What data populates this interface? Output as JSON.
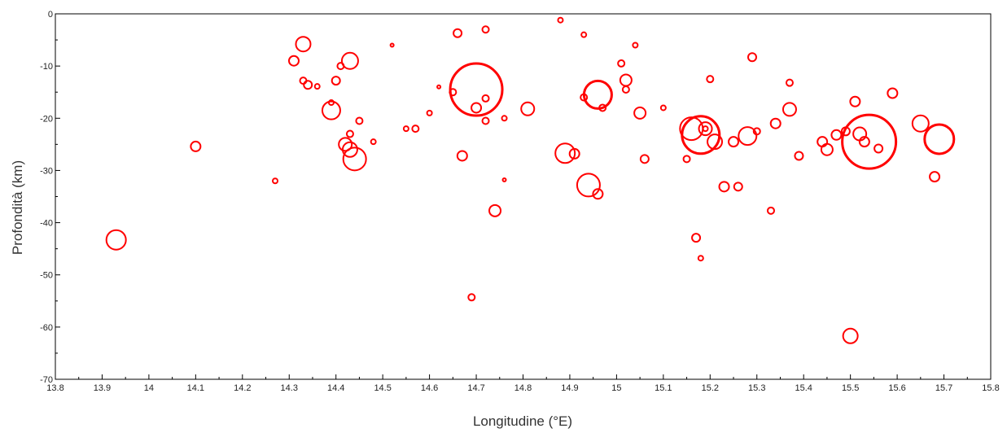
{
  "chart_data": {
    "type": "scatter",
    "xlabel": "Longitudine (°E)",
    "ylabel": "Profondità (km)",
    "xlim": [
      13.8,
      15.8
    ],
    "ylim": [
      -70,
      0
    ],
    "xticks": [
      "13.8",
      "13.9",
      "14",
      "14.1",
      "14.2",
      "14.3",
      "14.4",
      "14.5",
      "14.6",
      "14.7",
      "14.8",
      "14.9",
      "15",
      "15.1",
      "15.2",
      "15.3",
      "15.4",
      "15.5",
      "15.6",
      "15.7",
      "15.8"
    ],
    "yticks": [
      "0",
      "-10",
      "-20",
      "-30",
      "-40",
      "-50",
      "-60",
      "-70"
    ],
    "marker_color": "#ff0000",
    "grid": false,
    "points": [
      {
        "x": 13.93,
        "y": -43.3,
        "r": 12
      },
      {
        "x": 14.1,
        "y": -25.4,
        "r": 6
      },
      {
        "x": 14.27,
        "y": -32,
        "r": 3
      },
      {
        "x": 14.31,
        "y": -9,
        "r": 6
      },
      {
        "x": 14.33,
        "y": -5.8,
        "r": 9
      },
      {
        "x": 14.33,
        "y": -12.8,
        "r": 4
      },
      {
        "x": 14.34,
        "y": -13.6,
        "r": 5
      },
      {
        "x": 14.36,
        "y": -13.9,
        "r": 3
      },
      {
        "x": 14.39,
        "y": -18.5,
        "r": 11
      },
      {
        "x": 14.4,
        "y": -12.8,
        "r": 5
      },
      {
        "x": 14.41,
        "y": -10,
        "r": 4
      },
      {
        "x": 14.43,
        "y": -9,
        "r": 10
      },
      {
        "x": 14.43,
        "y": -26,
        "r": 9
      },
      {
        "x": 14.44,
        "y": -27.8,
        "r": 14
      },
      {
        "x": 14.42,
        "y": -25,
        "r": 8
      },
      {
        "x": 14.43,
        "y": -23,
        "r": 4
      },
      {
        "x": 14.45,
        "y": -20.5,
        "r": 4
      },
      {
        "x": 14.39,
        "y": -17,
        "r": 3
      },
      {
        "x": 14.48,
        "y": -24.5,
        "r": 3
      },
      {
        "x": 14.6,
        "y": -19,
        "r": 3
      },
      {
        "x": 14.65,
        "y": -15,
        "r": 4
      },
      {
        "x": 14.66,
        "y": -3.7,
        "r": 5
      },
      {
        "x": 14.67,
        "y": -27.2,
        "r": 6
      },
      {
        "x": 14.7,
        "y": -14.5,
        "r": 32
      },
      {
        "x": 14.7,
        "y": -18,
        "r": 6
      },
      {
        "x": 14.72,
        "y": -16.2,
        "r": 4
      },
      {
        "x": 14.74,
        "y": -37.7,
        "r": 7
      },
      {
        "x": 14.69,
        "y": -54.3,
        "r": 4
      },
      {
        "x": 14.72,
        "y": -20.5,
        "r": 4
      },
      {
        "x": 14.76,
        "y": -20,
        "r": 3
      },
      {
        "x": 14.76,
        "y": -31.8,
        "r": 2
      },
      {
        "x": 14.81,
        "y": -18.2,
        "r": 8
      },
      {
        "x": 14.89,
        "y": -26.7,
        "r": 12
      },
      {
        "x": 14.91,
        "y": -26.8,
        "r": 6
      },
      {
        "x": 14.93,
        "y": -16,
        "r": 4
      },
      {
        "x": 14.94,
        "y": -32.8,
        "r": 14
      },
      {
        "x": 14.96,
        "y": -15.5,
        "r": 17
      },
      {
        "x": 14.96,
        "y": -34.5,
        "r": 6
      },
      {
        "x": 14.97,
        "y": -18,
        "r": 4
      },
      {
        "x": 15.01,
        "y": -9.5,
        "r": 4
      },
      {
        "x": 15.02,
        "y": -12.7,
        "r": 7
      },
      {
        "x": 15.02,
        "y": -14.5,
        "r": 4
      },
      {
        "x": 15.05,
        "y": -19,
        "r": 7
      },
      {
        "x": 15.06,
        "y": -27.8,
        "r": 5
      },
      {
        "x": 15.1,
        "y": -18,
        "r": 3
      },
      {
        "x": 15.15,
        "y": -27.8,
        "r": 4
      },
      {
        "x": 15.16,
        "y": -22,
        "r": 14
      },
      {
        "x": 15.17,
        "y": -42.9,
        "r": 5
      },
      {
        "x": 15.18,
        "y": -23.2,
        "r": 23
      },
      {
        "x": 15.18,
        "y": -46.8,
        "r": 3
      },
      {
        "x": 15.19,
        "y": -22,
        "r": 8
      },
      {
        "x": 15.2,
        "y": -12.5,
        "r": 4
      },
      {
        "x": 15.21,
        "y": -24.5,
        "r": 9
      },
      {
        "x": 15.23,
        "y": -33.1,
        "r": 6
      },
      {
        "x": 15.25,
        "y": -24.5,
        "r": 6
      },
      {
        "x": 15.26,
        "y": -33.1,
        "r": 5
      },
      {
        "x": 15.28,
        "y": -23.4,
        "r": 11
      },
      {
        "x": 15.29,
        "y": -8.3,
        "r": 5
      },
      {
        "x": 15.3,
        "y": -22.5,
        "r": 4
      },
      {
        "x": 15.33,
        "y": -37.7,
        "r": 4
      },
      {
        "x": 15.34,
        "y": -21,
        "r": 6
      },
      {
        "x": 15.37,
        "y": -13.2,
        "r": 4
      },
      {
        "x": 15.37,
        "y": -18.3,
        "r": 8
      },
      {
        "x": 15.39,
        "y": -27.2,
        "r": 5
      },
      {
        "x": 15.44,
        "y": -24.5,
        "r": 6
      },
      {
        "x": 15.45,
        "y": -26,
        "r": 7
      },
      {
        "x": 15.47,
        "y": -23.2,
        "r": 6
      },
      {
        "x": 15.49,
        "y": -22.5,
        "r": 5
      },
      {
        "x": 15.5,
        "y": -61.7,
        "r": 9
      },
      {
        "x": 15.51,
        "y": -16.8,
        "r": 6
      },
      {
        "x": 15.52,
        "y": -23,
        "r": 8
      },
      {
        "x": 15.53,
        "y": -24.5,
        "r": 6
      },
      {
        "x": 15.54,
        "y": -24.5,
        "r": 33
      },
      {
        "x": 15.56,
        "y": -25.8,
        "r": 5
      },
      {
        "x": 15.59,
        "y": -15.2,
        "r": 6
      },
      {
        "x": 15.65,
        "y": -21,
        "r": 10
      },
      {
        "x": 15.69,
        "y": -24,
        "r": 18
      },
      {
        "x": 15.68,
        "y": -31.2,
        "r": 6
      },
      {
        "x": 14.57,
        "y": -22,
        "r": 4
      },
      {
        "x": 14.55,
        "y": -22,
        "r": 3
      },
      {
        "x": 14.88,
        "y": -1.2,
        "r": 3
      },
      {
        "x": 14.72,
        "y": -3,
        "r": 4
      },
      {
        "x": 14.93,
        "y": -4,
        "r": 3
      },
      {
        "x": 15.04,
        "y": -6,
        "r": 3
      },
      {
        "x": 14.52,
        "y": -6,
        "r": 2
      },
      {
        "x": 14.62,
        "y": -14,
        "r": 2
      },
      {
        "x": 15.19,
        "y": -22,
        "r": 3
      }
    ]
  }
}
